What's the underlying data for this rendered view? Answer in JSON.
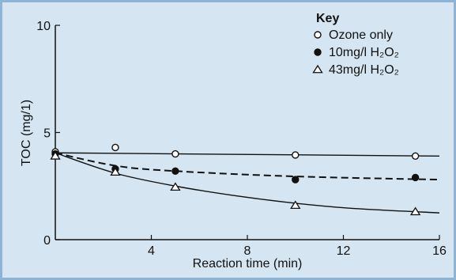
{
  "colors": {
    "background": "#d5e5f1",
    "border": "#8fb3d2",
    "ink": "#111111"
  },
  "chart_data": {
    "type": "scatter",
    "xlabel": "Reaction time (min)",
    "ylabel": "TOC (mg/1)",
    "xlim": [
      0,
      16
    ],
    "ylim": [
      0,
      10
    ],
    "x_ticks": [
      4,
      8,
      12,
      16
    ],
    "y_ticks": [
      0,
      5,
      10
    ],
    "grid": false,
    "legend_placement": "top-right",
    "legend_title": "Key",
    "series": [
      {
        "name": "Ozone only",
        "marker": "open-circle",
        "line_style": "solid",
        "x": [
          0,
          2.5,
          5,
          10,
          15
        ],
        "y": [
          4.1,
          4.3,
          4.0,
          3.95,
          3.9
        ],
        "fit": [
          [
            0,
            4.05
          ],
          [
            16,
            3.9
          ]
        ]
      },
      {
        "name": "10mg/l H₂O₂",
        "marker": "filled-circle",
        "line_style": "dashed",
        "x": [
          0,
          2.5,
          5,
          10,
          15
        ],
        "y": [
          4.0,
          3.3,
          3.2,
          2.8,
          2.9
        ],
        "fit": [
          [
            0,
            4.05
          ],
          [
            2.5,
            3.45
          ],
          [
            5,
            3.2
          ],
          [
            10,
            2.95
          ],
          [
            16,
            2.8
          ]
        ]
      },
      {
        "name": "43mg/l H₂O₂",
        "marker": "open-triangle",
        "line_style": "solid",
        "x": [
          0,
          2.5,
          5,
          10,
          15
        ],
        "y": [
          3.9,
          3.15,
          2.45,
          1.6,
          1.3
        ],
        "fit": [
          [
            0,
            4.05
          ],
          [
            2.5,
            3.1
          ],
          [
            5,
            2.5
          ],
          [
            7.5,
            2.05
          ],
          [
            10,
            1.7
          ],
          [
            12.5,
            1.45
          ],
          [
            16,
            1.25
          ]
        ]
      }
    ]
  }
}
